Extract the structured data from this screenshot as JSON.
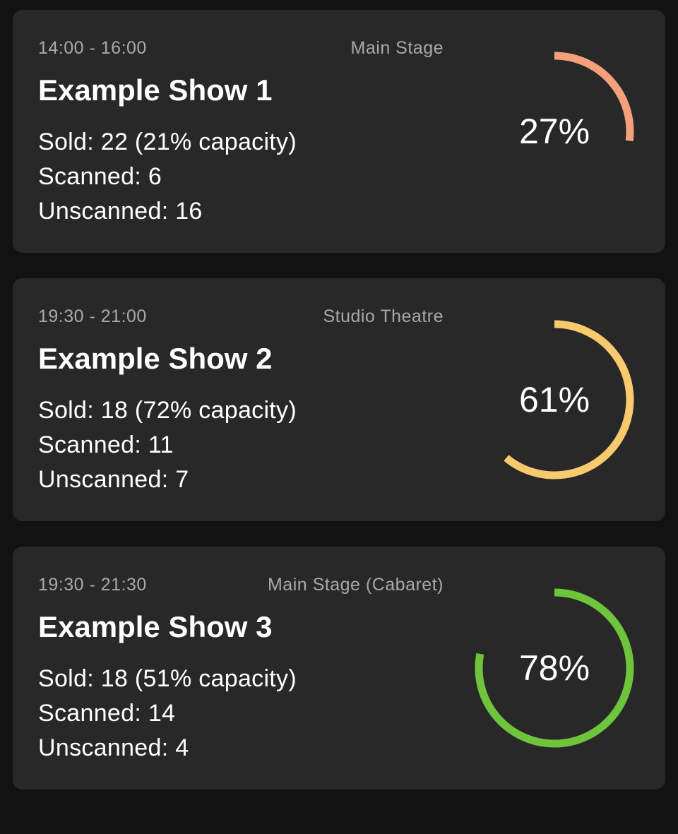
{
  "shows": [
    {
      "time": "14:00 - 16:00",
      "venue": "Main Stage",
      "title": "Example Show 1",
      "sold": "Sold: 22 (21% capacity)",
      "scanned": "Scanned: 6",
      "unscanned": "Unscanned: 16",
      "percent_label": "27%",
      "percent": 27,
      "color": "#f5a07c"
    },
    {
      "time": "19:30 - 21:00",
      "venue": "Studio Theatre",
      "title": "Example Show 2",
      "sold": "Sold: 18 (72% capacity)",
      "scanned": "Scanned: 11",
      "unscanned": "Unscanned: 7",
      "percent_label": "61%",
      "percent": 61,
      "color": "#f7ca6e"
    },
    {
      "time": "19:30 - 21:30",
      "venue": "Main Stage (Cabaret)",
      "title": "Example Show 3",
      "sold": "Sold: 18 (51% capacity)",
      "scanned": "Scanned: 14",
      "unscanned": "Unscanned: 4",
      "percent_label": "78%",
      "percent": 78,
      "color": "#6ec43a"
    }
  ]
}
